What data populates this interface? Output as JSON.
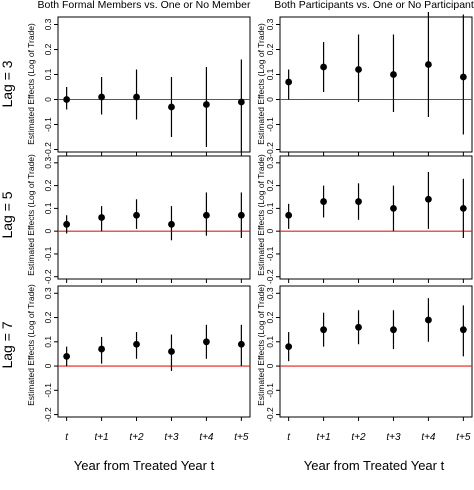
{
  "figure": {
    "column_titles": [
      "Both Formal Members vs. One or No Member",
      "Both Participants vs. One or No Participant"
    ],
    "row_labels": [
      "Lag = 3",
      "Lag = 5",
      "Lag = 7"
    ],
    "ylabel": "Estimated Effects (Log of Trade)",
    "xlabel": "Year from Treated Year t",
    "x_tick_labels": [
      "t",
      "t+1",
      "t+2",
      "t+3",
      "t+4",
      "t+5"
    ],
    "reference_line_color": "#e0201b",
    "point_color": "#000000"
  },
  "chart_data": [
    {
      "type": "scatter",
      "panel": "Lag = 3 / Both Formal Members vs. One or No Member",
      "x": [
        "t",
        "t+1",
        "t+2",
        "t+3",
        "t+4",
        "t+5"
      ],
      "estimate": [
        0.0,
        0.01,
        0.01,
        -0.03,
        -0.02,
        -0.01
      ],
      "ci_low": [
        -0.04,
        -0.06,
        -0.08,
        -0.15,
        -0.19,
        -0.21
      ],
      "ci_high": [
        0.05,
        0.09,
        0.12,
        0.09,
        0.13,
        0.16
      ],
      "ylim": [
        -0.21,
        0.33
      ],
      "yticks": [
        -0.2,
        -0.1,
        0,
        0.1,
        0.2,
        0.3
      ],
      "ytick_labels": [
        "-0.2",
        "-0.1",
        "0",
        "0.1",
        "0.2",
        "0.3"
      ],
      "reference_line": 0
    },
    {
      "type": "scatter",
      "panel": "Lag = 3 / Both Participants vs. One or No Participant",
      "x": [
        "t",
        "t+1",
        "t+2",
        "t+3",
        "t+4",
        "t+5"
      ],
      "estimate": [
        0.07,
        0.13,
        0.12,
        0.1,
        0.14,
        0.09
      ],
      "ci_low": [
        0.0,
        0.03,
        -0.01,
        -0.05,
        -0.07,
        -0.14
      ],
      "ci_high": [
        0.12,
        0.23,
        0.26,
        0.26,
        0.35,
        0.34
      ],
      "ylim": [
        -0.21,
        0.33
      ],
      "yticks": [
        -0.2,
        -0.1,
        0,
        0.1,
        0.2,
        0.3
      ],
      "ytick_labels": [
        "-0.2",
        "-0.1",
        "0",
        "0.1",
        "0.2",
        "0.3"
      ],
      "reference_line": 0
    },
    {
      "type": "scatter",
      "panel": "Lag = 5 / Both Formal Members vs. One or No Member",
      "x": [
        "t",
        "t+1",
        "t+2",
        "t+3",
        "t+4",
        "t+5"
      ],
      "estimate": [
        0.03,
        0.06,
        0.07,
        0.03,
        0.07,
        0.07
      ],
      "ci_low": [
        -0.01,
        0.0,
        0.01,
        -0.04,
        -0.02,
        -0.03
      ],
      "ci_high": [
        0.07,
        0.11,
        0.14,
        0.11,
        0.17,
        0.17
      ],
      "ylim": [
        -0.21,
        0.33
      ],
      "yticks": [
        -0.2,
        -0.1,
        0,
        0.1,
        0.2,
        0.3
      ],
      "ytick_labels": [
        "-0.2",
        "-0.1",
        "0",
        "0.1",
        "0.2",
        "0.3"
      ],
      "reference_line": 0
    },
    {
      "type": "scatter",
      "panel": "Lag = 5 / Both Participants vs. One or No Participant",
      "x": [
        "t",
        "t+1",
        "t+2",
        "t+3",
        "t+4",
        "t+5"
      ],
      "estimate": [
        0.07,
        0.13,
        0.13,
        0.1,
        0.14,
        0.1
      ],
      "ci_low": [
        0.01,
        0.06,
        0.05,
        0.0,
        0.01,
        -0.03
      ],
      "ci_high": [
        0.12,
        0.2,
        0.21,
        0.2,
        0.26,
        0.23
      ],
      "ylim": [
        -0.21,
        0.33
      ],
      "yticks": [
        -0.2,
        -0.1,
        0,
        0.1,
        0.2,
        0.3
      ],
      "ytick_labels": [
        "-0.2",
        "-0.1",
        "0",
        "0.1",
        "0.2",
        "0.3"
      ],
      "reference_line": 0
    },
    {
      "type": "scatter",
      "panel": "Lag = 7 / Both Formal Members vs. One or No Member",
      "x": [
        "t",
        "t+1",
        "t+2",
        "t+3",
        "t+4",
        "t+5"
      ],
      "estimate": [
        0.04,
        0.07,
        0.09,
        0.06,
        0.1,
        0.09
      ],
      "ci_low": [
        0.0,
        0.01,
        0.03,
        -0.02,
        0.03,
        0.0
      ],
      "ci_high": [
        0.08,
        0.12,
        0.14,
        0.13,
        0.17,
        0.17
      ],
      "ylim": [
        -0.21,
        0.33
      ],
      "yticks": [
        -0.2,
        -0.1,
        0,
        0.1,
        0.2,
        0.3
      ],
      "ytick_labels": [
        "-0.2",
        "-0.1",
        "0",
        "0.1",
        "0.2",
        "0.3"
      ],
      "reference_line": 0
    },
    {
      "type": "scatter",
      "panel": "Lag = 7 / Both Participants vs. One or No Participant",
      "x": [
        "t",
        "t+1",
        "t+2",
        "t+3",
        "t+4",
        "t+5"
      ],
      "estimate": [
        0.08,
        0.15,
        0.16,
        0.15,
        0.19,
        0.15
      ],
      "ci_low": [
        0.02,
        0.08,
        0.09,
        0.07,
        0.1,
        0.04
      ],
      "ci_high": [
        0.14,
        0.22,
        0.23,
        0.23,
        0.28,
        0.25
      ],
      "ylim": [
        -0.21,
        0.33
      ],
      "yticks": [
        -0.2,
        -0.1,
        0,
        0.1,
        0.2,
        0.3
      ],
      "ytick_labels": [
        "-0.2",
        "-0.1",
        "0",
        "0.1",
        "0.2",
        "0.3"
      ],
      "reference_line": 0
    }
  ]
}
